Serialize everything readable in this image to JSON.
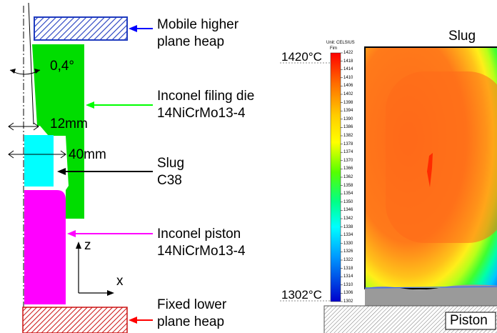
{
  "left_diagram": {
    "upper_heap_label": [
      "Mobile higher",
      "plane heap"
    ],
    "die_label": [
      "Inconel filing die",
      "14NiCrMo13-4"
    ],
    "slug_label": [
      "Slug",
      "C38"
    ],
    "piston_label": [
      "Inconel piston",
      "14NiCrMo13-4"
    ],
    "lower_heap_label": [
      "Fixed lower",
      "plane heap"
    ],
    "angle_label": "0,4°",
    "dim_12": "12mm",
    "dim_40": "40mm",
    "axis_z": "z",
    "axis_x": "x",
    "colors": {
      "upper_heap": "#1f3bbf",
      "die": "#00dd00",
      "slug": "#00ffff",
      "piston": "#ff00ff",
      "lower_heap": "#cc1111",
      "arrow_blue": "#0000ff",
      "arrow_green": "#00ff00",
      "arrow_black": "#000000",
      "arrow_magenta": "#ff00ff",
      "arrow_red": "#ff0000"
    }
  },
  "right_simulation": {
    "slug_label": "Slug",
    "piston_label": "Piston",
    "max_temp_label": "1420°C",
    "min_temp_label": "1302°C",
    "legend_unit": "Unit: CELSIUS",
    "legend_sub": "Fim",
    "legend_ticks": [
      "1422",
      "1418",
      "1414",
      "1410",
      "1406",
      "1402",
      "1398",
      "1394",
      "1390",
      "1386",
      "1382",
      "1378",
      "1374",
      "1370",
      "1366",
      "1362",
      "1358",
      "1354",
      "1350",
      "1346",
      "1342",
      "1338",
      "1334",
      "1330",
      "1326",
      "1322",
      "1318",
      "1314",
      "1310",
      "1306",
      "1302"
    ],
    "colormap": [
      "#ff0000",
      "#ff2a00",
      "#ff5500",
      "#ff7f00",
      "#ffaa00",
      "#ffd400",
      "#ffff00",
      "#aaff00",
      "#55ff00",
      "#00ff00",
      "#00ff55",
      "#00ffaa",
      "#00ffff",
      "#00aaff",
      "#0055ff",
      "#0000ff"
    ]
  }
}
